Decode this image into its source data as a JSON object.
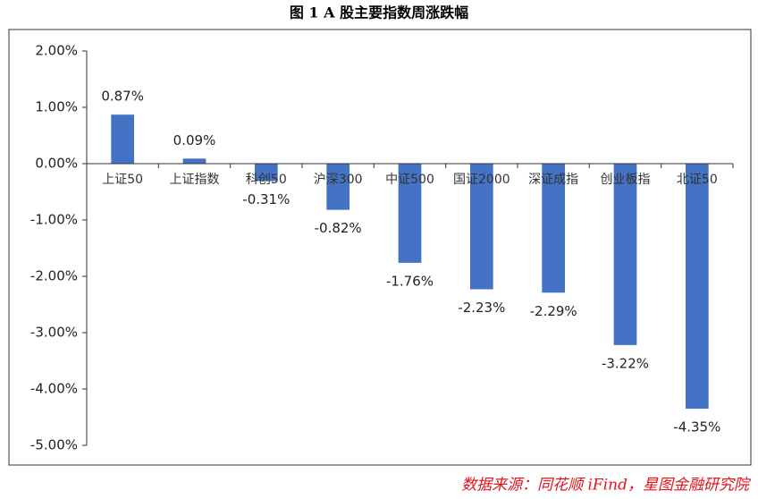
{
  "chart_data": {
    "type": "bar",
    "title": "图 1 A 股主要指数周涨跌幅",
    "source": "数据来源：同花顺 iFind，星图金融研究院",
    "categories": [
      "上证50",
      "上证指数",
      "科创50",
      "沪深300",
      "中证500",
      "国证2000",
      "深证成指",
      "创业板指",
      "北证50"
    ],
    "values": [
      0.87,
      0.09,
      -0.31,
      -0.82,
      -1.76,
      -2.23,
      -2.29,
      -3.22,
      -4.35
    ],
    "value_labels": [
      "0.87%",
      "0.09%",
      "-0.31%",
      "-0.82%",
      "-1.76%",
      "-2.23%",
      "-2.29%",
      "-3.22%",
      "-4.35%"
    ],
    "color": "#4472c4",
    "ylim": [
      -5,
      2
    ],
    "yticks": [
      {
        "value": 2,
        "label": "2.00%"
      },
      {
        "value": 1,
        "label": "1.00%"
      },
      {
        "value": 0,
        "label": "0.00%"
      },
      {
        "value": -1,
        "label": "-1.00%"
      },
      {
        "value": -2,
        "label": "-2.00%"
      },
      {
        "value": -3,
        "label": "-3.00%"
      },
      {
        "value": -4,
        "label": "-4.00%"
      },
      {
        "value": -5,
        "label": "-5.00%"
      }
    ],
    "grid": false
  }
}
